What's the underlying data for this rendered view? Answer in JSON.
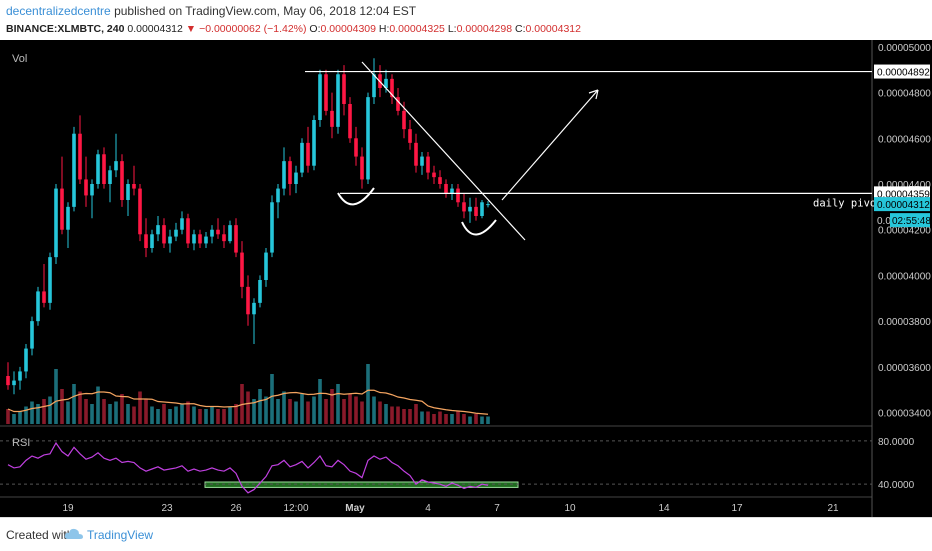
{
  "header": {
    "username": "decentralizedcentre",
    "published_text": " published on TradingView.com, May 06, 2018 12:04 EST",
    "symbol": "BINANCE:XLMBTC, 240",
    "last": "0.00004312",
    "change": "▼ −0.00000062 (−1.42%)",
    "o_label": "O:",
    "o_value": "0.00004309",
    "h_label": "H:",
    "h_value": "0.00004325",
    "l_label": "L:",
    "l_value": "0.00004298",
    "c_label": "C:",
    "c_value": "0.00004312"
  },
  "panes": {
    "main_label": "Vol",
    "rsi_label": "RSI"
  },
  "price_scale": [
    "0.00005000",
    "0.00004800",
    "0.00004600",
    "0.00004400",
    "0.00004200",
    "0.00004000",
    "0.00003800",
    "0.00003600",
    "0.00003400"
  ],
  "price_tags": {
    "resistance": "0.00004892",
    "pivot": "0.00004359",
    "last": "0.00004312",
    "countdown": "02:55:48",
    "hidden_prefix": "0.0"
  },
  "rsi_scale": [
    "80.0000",
    "40.0000"
  ],
  "time_axis": [
    "19",
    "23",
    "26",
    "12:00",
    "May",
    "4",
    "7",
    "10",
    "14",
    "17",
    "21"
  ],
  "annotation": "daily pivot",
  "footer": {
    "created_with": "Created with",
    "brand": "TradingView"
  },
  "colors": {
    "up": "#26c6da",
    "down": "#ff1744",
    "volume_ma": "#f4a460",
    "rsi": "#c040e0",
    "rsi_box": "#1f6b1f",
    "drawing": "#ffffff"
  },
  "icons": {
    "logo": "tradingview-cloud-icon",
    "change_arrow": "down-triangle-icon"
  },
  "chart_data": {
    "type": "candlestick",
    "symbol": "BINANCE:XLMBTC",
    "timeframe": "240",
    "y_range": [
      3.35e-05,
      5.03e-05
    ],
    "rsi_range": [
      30,
      90
    ],
    "candles": [
      [
        3.56e-05,
        3.62e-05,
        3.5e-05,
        3.52e-05
      ],
      [
        3.52e-05,
        3.58e-05,
        3.48e-05,
        3.54e-05
      ],
      [
        3.54e-05,
        3.6e-05,
        3.5e-05,
        3.58e-05
      ],
      [
        3.58e-05,
        3.7e-05,
        3.55e-05,
        3.68e-05
      ],
      [
        3.68e-05,
        3.82e-05,
        3.65e-05,
        3.8e-05
      ],
      [
        3.8e-05,
        3.95e-05,
        3.78e-05,
        3.93e-05
      ],
      [
        3.93e-05,
        4.05e-05,
        3.86e-05,
        3.88e-05
      ],
      [
        3.88e-05,
        4.1e-05,
        3.85e-05,
        4.08e-05
      ],
      [
        4.08e-05,
        4.4e-05,
        4.05e-05,
        4.38e-05
      ],
      [
        4.38e-05,
        4.52e-05,
        4.18e-05,
        4.2e-05
      ],
      [
        4.2e-05,
        4.32e-05,
        4.12e-05,
        4.3e-05
      ],
      [
        4.3e-05,
        4.65e-05,
        4.28e-05,
        4.62e-05
      ],
      [
        4.62e-05,
        4.7e-05,
        4.4e-05,
        4.42e-05
      ],
      [
        4.42e-05,
        4.52e-05,
        4.3e-05,
        4.35e-05
      ],
      [
        4.35e-05,
        4.42e-05,
        4.25e-05,
        4.4e-05
      ],
      [
        4.4e-05,
        4.55e-05,
        4.38e-05,
        4.53e-05
      ],
      [
        4.53e-05,
        4.56e-05,
        4.38e-05,
        4.4e-05
      ],
      [
        4.4e-05,
        4.48e-05,
        4.32e-05,
        4.46e-05
      ],
      [
        4.46e-05,
        4.62e-05,
        4.43e-05,
        4.5e-05
      ],
      [
        4.5e-05,
        4.53e-05,
        4.3e-05,
        4.33e-05
      ],
      [
        4.33e-05,
        4.42e-05,
        4.26e-05,
        4.4e-05
      ],
      [
        4.4e-05,
        4.48e-05,
        4.35e-05,
        4.38e-05
      ],
      [
        4.38e-05,
        4.4e-05,
        4.15e-05,
        4.18e-05
      ],
      [
        4.18e-05,
        4.25e-05,
        4.08e-05,
        4.12e-05
      ],
      [
        4.12e-05,
        4.2e-05,
        4.1e-05,
        4.18e-05
      ],
      [
        4.18e-05,
        4.26e-05,
        4.15e-05,
        4.22e-05
      ],
      [
        4.22e-05,
        4.25e-05,
        4.12e-05,
        4.14e-05
      ],
      [
        4.14e-05,
        4.2e-05,
        4.1e-05,
        4.17e-05
      ],
      [
        4.17e-05,
        4.23e-05,
        4.15e-05,
        4.2e-05
      ],
      [
        4.2e-05,
        4.28e-05,
        4.18e-05,
        4.25e-05
      ],
      [
        4.25e-05,
        4.27e-05,
        4.12e-05,
        4.14e-05
      ],
      [
        4.14e-05,
        4.2e-05,
        4.11e-05,
        4.18e-05
      ],
      [
        4.18e-05,
        4.2e-05,
        4.12e-05,
        4.14e-05
      ],
      [
        4.14e-05,
        4.19e-05,
        4.12e-05,
        4.17e-05
      ],
      [
        4.17e-05,
        4.22e-05,
        4.14e-05,
        4.2e-05
      ],
      [
        4.2e-05,
        4.25e-05,
        4.16e-05,
        4.18e-05
      ],
      [
        4.18e-05,
        4.22e-05,
        4.12e-05,
        4.15e-05
      ],
      [
        4.15e-05,
        4.24e-05,
        4.14e-05,
        4.22e-05
      ],
      [
        4.22e-05,
        4.25e-05,
        4.08e-05,
        4.1e-05
      ],
      [
        4.1e-05,
        4.15e-05,
        3.9e-05,
        3.95e-05
      ],
      [
        3.95e-05,
        4e-05,
        3.78e-05,
        3.83e-05
      ],
      [
        3.83e-05,
        3.9e-05,
        3.7e-05,
        3.88e-05
      ],
      [
        3.88e-05,
        4e-05,
        3.86e-05,
        3.98e-05
      ],
      [
        3.98e-05,
        4.12e-05,
        3.95e-05,
        4.1e-05
      ],
      [
        4.1e-05,
        4.35e-05,
        4.08e-05,
        4.32e-05
      ],
      [
        4.32e-05,
        4.4e-05,
        4.25e-05,
        4.38e-05
      ],
      [
        4.38e-05,
        4.56e-05,
        4.35e-05,
        4.5e-05
      ],
      [
        4.5e-05,
        4.52e-05,
        4.35e-05,
        4.4e-05
      ],
      [
        4.4e-05,
        4.48e-05,
        4.36e-05,
        4.45e-05
      ],
      [
        4.45e-05,
        4.6e-05,
        4.43e-05,
        4.58e-05
      ],
      [
        4.58e-05,
        4.65e-05,
        4.45e-05,
        4.48e-05
      ],
      [
        4.48e-05,
        4.7e-05,
        4.46e-05,
        4.68e-05
      ],
      [
        4.68e-05,
        4.9e-05,
        4.65e-05,
        4.88e-05
      ],
      [
        4.88e-05,
        4.9e-05,
        4.7e-05,
        4.72e-05
      ],
      [
        4.72e-05,
        4.8e-05,
        4.6e-05,
        4.65e-05
      ],
      [
        4.65e-05,
        4.9e-05,
        4.62e-05,
        4.88e-05
      ],
      [
        4.88e-05,
        4.92e-05,
        4.7e-05,
        4.75e-05
      ],
      [
        4.75e-05,
        4.78e-05,
        4.58e-05,
        4.6e-05
      ],
      [
        4.6e-05,
        4.65e-05,
        4.48e-05,
        4.52e-05
      ],
      [
        4.52e-05,
        4.56e-05,
        4.38e-05,
        4.42e-05
      ],
      [
        4.42e-05,
        4.8e-05,
        4.4e-05,
        4.78e-05
      ],
      [
        4.78e-05,
        4.95e-05,
        4.75e-05,
        4.88e-05
      ],
      [
        4.88e-05,
        4.92e-05,
        4.78e-05,
        4.82e-05
      ],
      [
        4.82e-05,
        4.9e-05,
        4.8e-05,
        4.86e-05
      ],
      [
        4.86e-05,
        4.88e-05,
        4.75e-05,
        4.78e-05
      ],
      [
        4.78e-05,
        4.82e-05,
        4.7e-05,
        4.72e-05
      ],
      [
        4.72e-05,
        4.76e-05,
        4.6e-05,
        4.64e-05
      ],
      [
        4.64e-05,
        4.68e-05,
        4.55e-05,
        4.58e-05
      ],
      [
        4.58e-05,
        4.62e-05,
        4.45e-05,
        4.48e-05
      ],
      [
        4.48e-05,
        4.54e-05,
        4.44e-05,
        4.52e-05
      ],
      [
        4.52e-05,
        4.54e-05,
        4.42e-05,
        4.45e-05
      ],
      [
        4.45e-05,
        4.48e-05,
        4.4e-05,
        4.43e-05
      ],
      [
        4.43e-05,
        4.46e-05,
        4.38e-05,
        4.4e-05
      ],
      [
        4.4e-05,
        4.42e-05,
        4.34e-05,
        4.36e-05
      ],
      [
        4.36e-05,
        4.4e-05,
        4.33e-05,
        4.38e-05
      ],
      [
        4.38e-05,
        4.4e-05,
        4.3e-05,
        4.32e-05
      ],
      [
        4.32e-05,
        4.36e-05,
        4.25e-05,
        4.28e-05
      ],
      [
        4.28e-05,
        4.34e-05,
        4.23e-05,
        4.3e-05
      ],
      [
        4.3e-05,
        4.34e-05,
        4.24e-05,
        4.26e-05
      ],
      [
        4.26e-05,
        4.33e-05,
        4.25e-05,
        4.32e-05
      ],
      [
        4.309e-05,
        4.325e-05,
        4.298e-05,
        4.312e-05
      ]
    ],
    "volume": [
      0.6,
      0.4,
      0.5,
      0.7,
      0.9,
      0.8,
      1.0,
      1.1,
      2.2,
      1.4,
      0.9,
      1.6,
      1.3,
      1.0,
      0.8,
      1.5,
      1.0,
      0.8,
      0.9,
      1.2,
      0.8,
      0.7,
      1.3,
      1.0,
      0.7,
      0.6,
      0.8,
      0.6,
      0.7,
      0.8,
      0.9,
      0.7,
      0.6,
      0.6,
      0.7,
      0.6,
      0.6,
      0.7,
      0.8,
      1.6,
      1.3,
      1.0,
      1.4,
      1.1,
      2.0,
      1.0,
      1.3,
      1.0,
      0.9,
      1.2,
      0.9,
      1.1,
      1.8,
      1.0,
      1.4,
      1.6,
      1.0,
      1.2,
      1.1,
      0.9,
      2.4,
      1.1,
      0.9,
      0.8,
      0.7,
      0.7,
      0.6,
      0.6,
      0.8,
      0.5,
      0.5,
      0.4,
      0.5,
      0.4,
      0.4,
      0.5,
      0.4,
      0.3,
      0.4,
      0.3,
      0.3
    ],
    "rsi": [
      58,
      55,
      56,
      62,
      66,
      64,
      67,
      68,
      78,
      70,
      66,
      74,
      68,
      63,
      65,
      69,
      64,
      62,
      64,
      60,
      61,
      60,
      55,
      52,
      54,
      56,
      53,
      54,
      55,
      57,
      52,
      54,
      52,
      53,
      55,
      53,
      52,
      55,
      50,
      38,
      32,
      35,
      41,
      47,
      57,
      58,
      62,
      56,
      58,
      61,
      55,
      60,
      66,
      57,
      56,
      62,
      58,
      52,
      50,
      46,
      62,
      66,
      63,
      65,
      60,
      57,
      52,
      48,
      40,
      44,
      42,
      41,
      40,
      38,
      41,
      39,
      36,
      38,
      37,
      40,
      39
    ],
    "rsi_levels": [
      80,
      40
    ],
    "levels": {
      "resistance": 4.892e-05,
      "daily_pivot": 4.359e-05,
      "last": 4.312e-05
    }
  }
}
